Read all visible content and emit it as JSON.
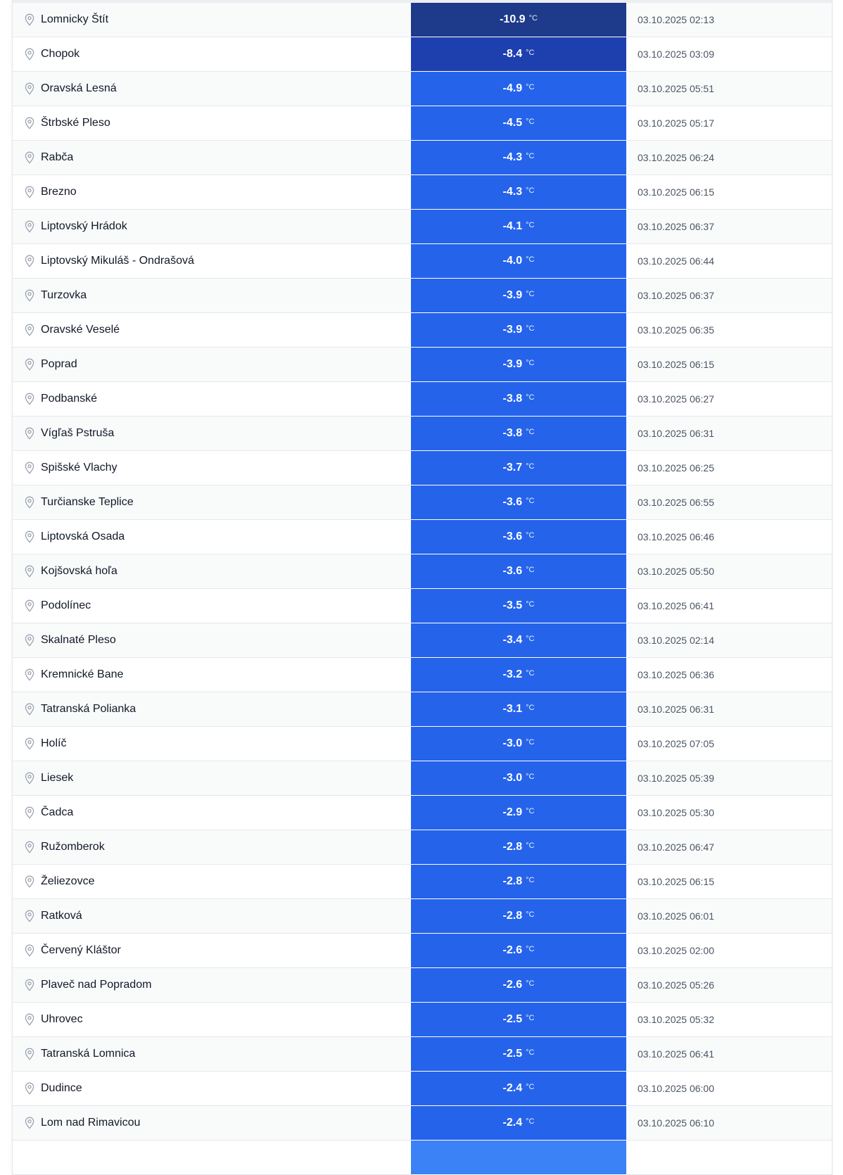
{
  "unit": "°C",
  "colors": {
    "coldest": "#1e3a8a",
    "very_cold": "#1e40af",
    "cold": "#2563eb",
    "next": "#3b82f6"
  },
  "rows": [
    {
      "station": "Lomnicky Štít",
      "temp": "-10.9",
      "time": "03.10.2025 02:13",
      "color": "#1e3a8a"
    },
    {
      "station": "Chopok",
      "temp": "-8.4",
      "time": "03.10.2025 03:09",
      "color": "#1e40af"
    },
    {
      "station": "Oravská Lesná",
      "temp": "-4.9",
      "time": "03.10.2025 05:51",
      "color": "#2563eb"
    },
    {
      "station": "Štrbské Pleso",
      "temp": "-4.5",
      "time": "03.10.2025 05:17",
      "color": "#2563eb"
    },
    {
      "station": "Rabča",
      "temp": "-4.3",
      "time": "03.10.2025 06:24",
      "color": "#2563eb"
    },
    {
      "station": "Brezno",
      "temp": "-4.3",
      "time": "03.10.2025 06:15",
      "color": "#2563eb"
    },
    {
      "station": "Liptovský Hrádok",
      "temp": "-4.1",
      "time": "03.10.2025 06:37",
      "color": "#2563eb"
    },
    {
      "station": "Liptovský Mikuláš - Ondrašová",
      "temp": "-4.0",
      "time": "03.10.2025 06:44",
      "color": "#2563eb"
    },
    {
      "station": "Turzovka",
      "temp": "-3.9",
      "time": "03.10.2025 06:37",
      "color": "#2563eb"
    },
    {
      "station": "Oravské Veselé",
      "temp": "-3.9",
      "time": "03.10.2025 06:35",
      "color": "#2563eb"
    },
    {
      "station": "Poprad",
      "temp": "-3.9",
      "time": "03.10.2025 06:15",
      "color": "#2563eb"
    },
    {
      "station": "Podbanské",
      "temp": "-3.8",
      "time": "03.10.2025 06:27",
      "color": "#2563eb"
    },
    {
      "station": "Vígľaš Pstruša",
      "temp": "-3.8",
      "time": "03.10.2025 06:31",
      "color": "#2563eb"
    },
    {
      "station": "Spišské Vlachy",
      "temp": "-3.7",
      "time": "03.10.2025 06:25",
      "color": "#2563eb"
    },
    {
      "station": "Turčianske Teplice",
      "temp": "-3.6",
      "time": "03.10.2025 06:55",
      "color": "#2563eb"
    },
    {
      "station": "Liptovská Osada",
      "temp": "-3.6",
      "time": "03.10.2025 06:46",
      "color": "#2563eb"
    },
    {
      "station": "Kojšovská hoľa",
      "temp": "-3.6",
      "time": "03.10.2025 05:50",
      "color": "#2563eb"
    },
    {
      "station": "Podolínec",
      "temp": "-3.5",
      "time": "03.10.2025 06:41",
      "color": "#2563eb"
    },
    {
      "station": "Skalnaté Pleso",
      "temp": "-3.4",
      "time": "03.10.2025 02:14",
      "color": "#2563eb"
    },
    {
      "station": "Kremnické Bane",
      "temp": "-3.2",
      "time": "03.10.2025 06:36",
      "color": "#2563eb"
    },
    {
      "station": "Tatranská Polianka",
      "temp": "-3.1",
      "time": "03.10.2025 06:31",
      "color": "#2563eb"
    },
    {
      "station": "Holíč",
      "temp": "-3.0",
      "time": "03.10.2025 07:05",
      "color": "#2563eb"
    },
    {
      "station": "Liesek",
      "temp": "-3.0",
      "time": "03.10.2025 05:39",
      "color": "#2563eb"
    },
    {
      "station": "Čadca",
      "temp": "-2.9",
      "time": "03.10.2025 05:30",
      "color": "#2563eb"
    },
    {
      "station": "Ružomberok",
      "temp": "-2.8",
      "time": "03.10.2025 06:47",
      "color": "#2563eb"
    },
    {
      "station": "Želiezovce",
      "temp": "-2.8",
      "time": "03.10.2025 06:15",
      "color": "#2563eb"
    },
    {
      "station": "Ratková",
      "temp": "-2.8",
      "time": "03.10.2025 06:01",
      "color": "#2563eb"
    },
    {
      "station": "Červený Kláštor",
      "temp": "-2.6",
      "time": "03.10.2025 02:00",
      "color": "#2563eb"
    },
    {
      "station": "Plaveč nad Popradom",
      "temp": "-2.6",
      "time": "03.10.2025 05:26",
      "color": "#2563eb"
    },
    {
      "station": "Uhrovec",
      "temp": "-2.5",
      "time": "03.10.2025 05:32",
      "color": "#2563eb"
    },
    {
      "station": "Tatranská Lomnica",
      "temp": "-2.5",
      "time": "03.10.2025 06:41",
      "color": "#2563eb"
    },
    {
      "station": "Dudince",
      "temp": "-2.4",
      "time": "03.10.2025 06:00",
      "color": "#2563eb"
    },
    {
      "station": "Lom nad Rimavicou",
      "temp": "-2.4",
      "time": "03.10.2025 06:10",
      "color": "#2563eb"
    }
  ]
}
